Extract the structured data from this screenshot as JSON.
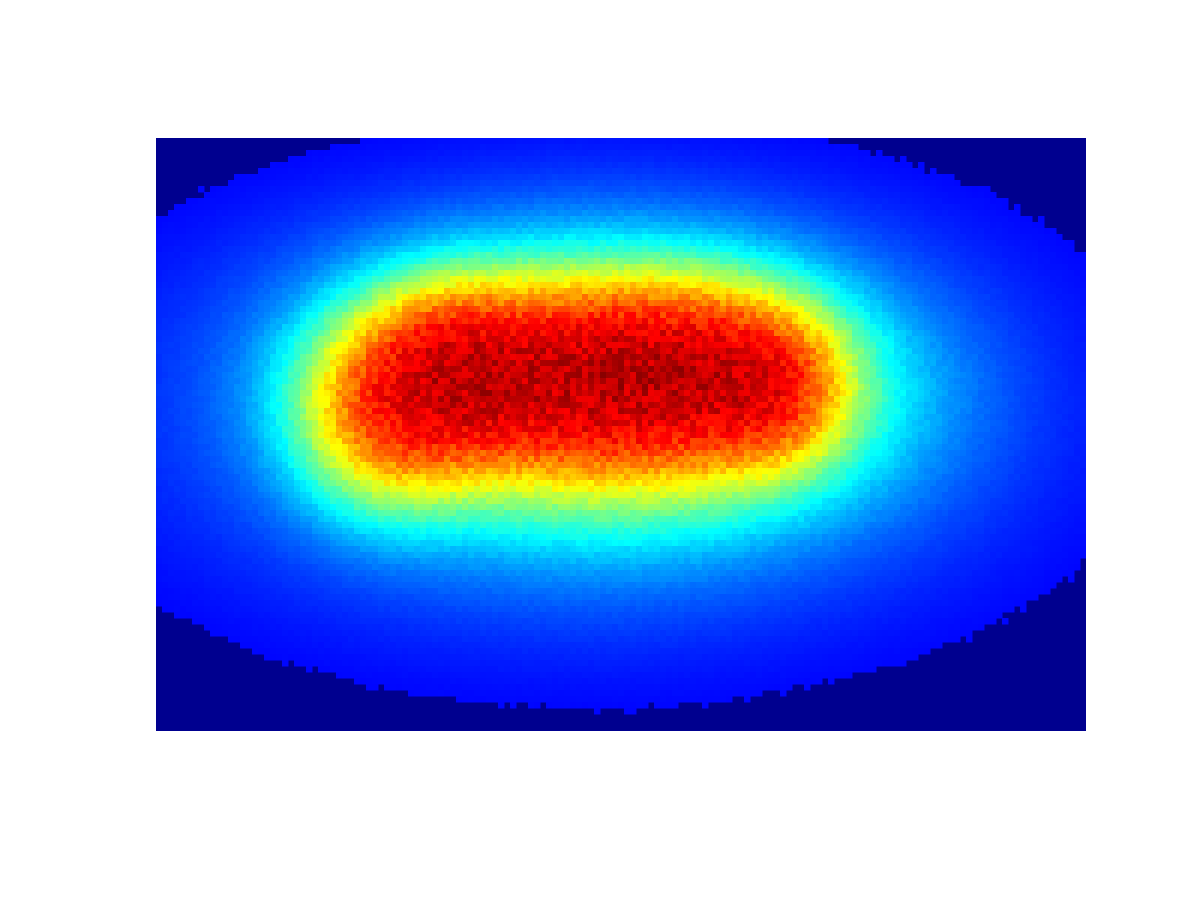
{
  "chart_data": {
    "type": "heatmap",
    "title": "",
    "xlabel": "",
    "ylabel": "",
    "axes_visible": false,
    "colormap": "jet",
    "colorbar": false,
    "grid": false,
    "background_color": "#00008f",
    "intensity_scale": [
      0,
      1
    ],
    "clusters": [
      {
        "cx": 0.25,
        "cy": 0.46,
        "sx": 0.06,
        "sy": 0.1,
        "amp": 0.6
      },
      {
        "cx": 0.32,
        "cy": 0.39,
        "sx": 0.055,
        "sy": 0.09,
        "amp": 0.55
      },
      {
        "cx": 0.42,
        "cy": 0.4,
        "sx": 0.1,
        "sy": 0.09,
        "amp": 0.8
      },
      {
        "cx": 0.57,
        "cy": 0.39,
        "sx": 0.08,
        "sy": 0.09,
        "amp": 0.7
      },
      {
        "cx": 0.66,
        "cy": 0.42,
        "sx": 0.05,
        "sy": 0.08,
        "amp": 0.55
      },
      {
        "cx": 0.5,
        "cy": 0.44,
        "sx": 0.16,
        "sy": 0.12,
        "amp": 0.55
      },
      {
        "cx": 0.47,
        "cy": 0.47,
        "sx": 0.26,
        "sy": 0.21,
        "amp": 0.22
      },
      {
        "cx": 0.47,
        "cy": 0.28,
        "sx": 0.2,
        "sy": 0.12,
        "amp": 0.08
      }
    ]
  }
}
